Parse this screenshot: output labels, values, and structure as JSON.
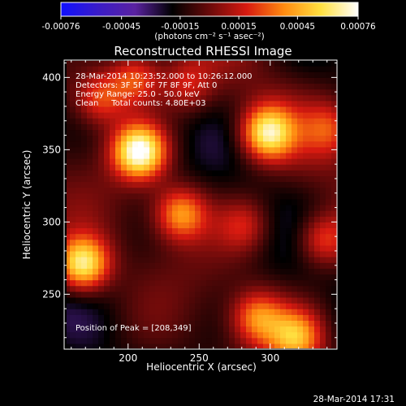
{
  "chart_data": {
    "type": "heatmap",
    "title": "Reconstructed RHESSI Image",
    "xlabel": "Heliocentric X (arcsec)",
    "ylabel": "Heliocentric Y (arcsec)",
    "xlim": [
      155,
      347
    ],
    "ylim": [
      212,
      412
    ],
    "x_ticks": [
      200,
      250,
      300
    ],
    "y_ticks": [
      250,
      300,
      350,
      400
    ],
    "colorbar": {
      "min": -0.00076,
      "max": 0.00076,
      "ticks": [
        "-0.00076",
        "-0.00045",
        "-0.00015",
        "0.00015",
        "0.00045",
        "0.00076"
      ],
      "tick_values": [
        -0.00076,
        -0.00045,
        -0.00015,
        0.00015,
        0.00045,
        0.00076
      ],
      "unit_label": "(photons cm⁻² s⁻¹ asec⁻²)",
      "colors": [
        "#1010ff",
        "#3a1cc8",
        "#5a22a0",
        "#000000",
        "#6a0a0a",
        "#d81a10",
        "#ff8a10",
        "#ffe040",
        "#ffffff"
      ]
    },
    "annotations": {
      "time_range": "28-Mar-2014 10:23:52.000 to 10:26:12.000",
      "detectors": "Detectors: 3F 5F 6F 7F 8F 9F, Att 0",
      "energy_range": "Energy Range: 25.0 - 50.0 keV",
      "clean": "Clean     Total counts: 4.80E+03",
      "peak": "Position of Peak = [208,349]"
    },
    "sources": [
      {
        "x": 208,
        "y": 349,
        "peak": 0.00076
      },
      {
        "x": 298,
        "y": 362,
        "peak": 0.00062
      },
      {
        "x": 168,
        "y": 271,
        "peak": 0.00066
      },
      {
        "x": 237,
        "y": 306,
        "peak": 0.00042
      },
      {
        "x": 282,
        "y": 298,
        "peak": 0.00018
      },
      {
        "x": 291,
        "y": 234,
        "peak": 0.00036
      },
      {
        "x": 318,
        "y": 221,
        "peak": 0.0004
      },
      {
        "x": 337,
        "y": 288,
        "peak": 0.0003
      },
      {
        "x": 180,
        "y": 386,
        "peak": 0.0003
      },
      {
        "x": 205,
        "y": 400,
        "peak": 0.00034
      },
      {
        "x": 342,
        "y": 365,
        "peak": 0.0002
      },
      {
        "x": 242,
        "y": 395,
        "peak": 0.00018
      }
    ],
    "background_level": -0.0001,
    "peak_position": [
      208,
      349
    ]
  },
  "footer": {
    "timestamp": "28-Mar-2014 17:31"
  }
}
